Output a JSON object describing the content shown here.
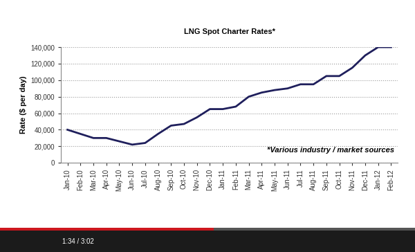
{
  "chart_data": {
    "type": "line",
    "title": "LNG Spot Charter Rates*",
    "y_label": "Rate ($ per day)",
    "annotations": [
      "*Various industry / market sources",
      "1:34 / 3:02"
    ],
    "categories": [
      "Jan-10",
      "Feb-10",
      "Mar-10",
      "Apr-10",
      "May-10",
      "Jun-10",
      "Jul-10",
      "Aug-10",
      "Sep-10",
      "Oct-10",
      "Nov-10",
      "Dec-10",
      "Jan-11",
      "Feb-11",
      "Mar-11",
      "Apr-11",
      "May-11",
      "Jun-11",
      "Jul-11",
      "Aug-11",
      "Sep-11",
      "Oct-11",
      "Nov-11",
      "Dec-11",
      "Jan-12",
      "Feb-12"
    ],
    "values": [
      40000,
      35000,
      30000,
      30000,
      26000,
      22000,
      24000,
      35000,
      45000,
      47000,
      55000,
      65000,
      65000,
      68000,
      80000,
      85000,
      88000,
      90000,
      95000,
      95000,
      105000,
      105000,
      115000,
      130000,
      140000,
      140000
    ],
    "color": "#1f1f5c",
    "ylim": [
      0,
      140000
    ],
    "yticks": [
      0,
      {
        "value": 20000,
        "label": "20,000"
      },
      {
        "value": 40000,
        "label": "40,000"
      },
      {
        "value": 60000,
        "label": "60,000"
      },
      {
        "value": 80000,
        "label": "80,000"
      },
      {
        "value": 100000,
        "label": "100,000"
      },
      {
        "value": 120000,
        "label": "120,000"
      },
      {
        "value": 140000,
        "label": "140,000"
      }
    ],
    "grid": true
  }
}
